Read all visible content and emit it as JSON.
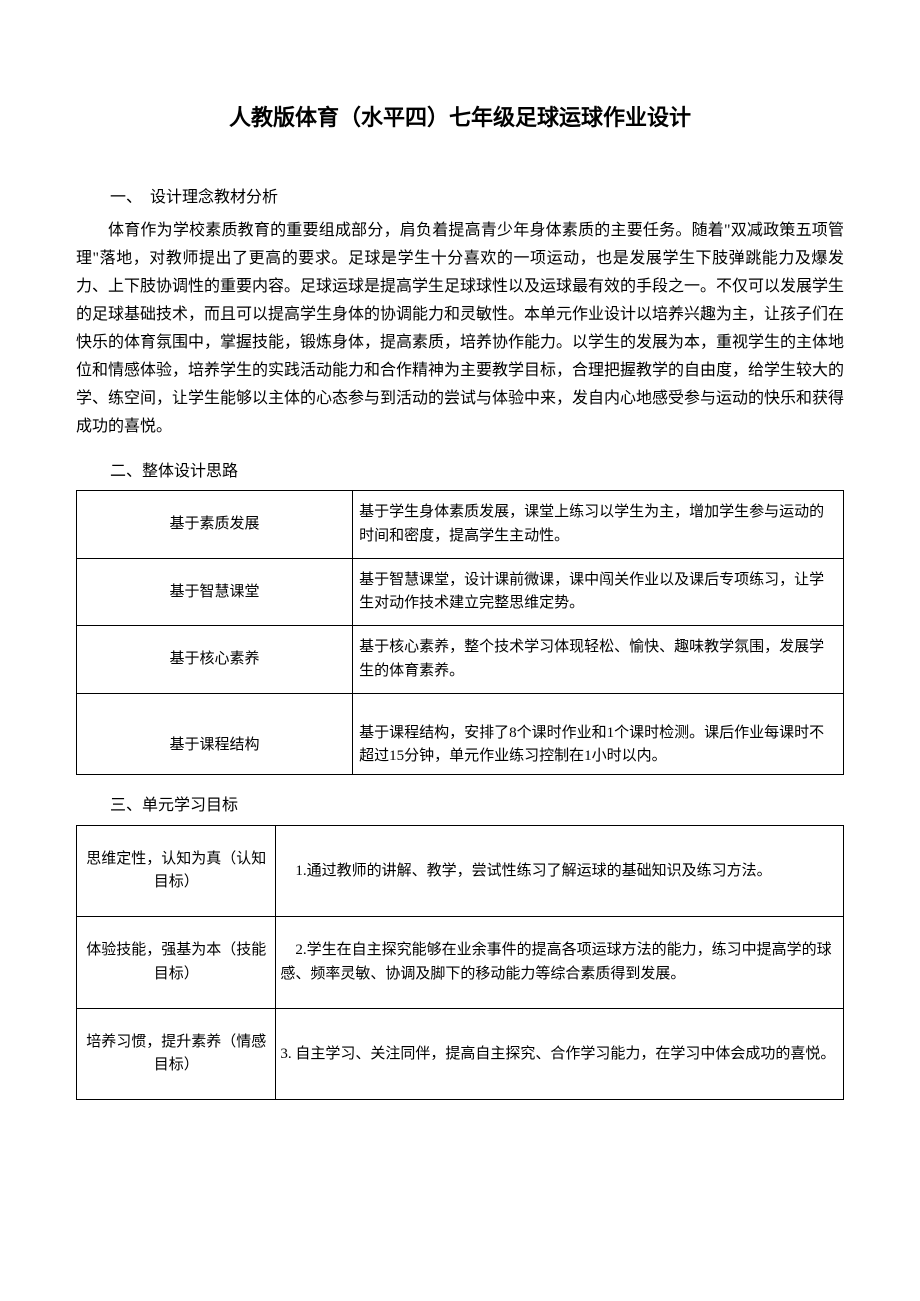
{
  "title": "人教版体育（水平四）七年级足球运球作业设计",
  "section1": {
    "heading": "一、　设计理念教材分析",
    "body": "体育作为学校素质教育的重要组成部分，肩负着提高青少年身体素质的主要任务。随着\"双减政策五项管理\"落地，对教师提出了更高的要求。足球是学生十分喜欢的一项运动，也是发展学生下肢弹跳能力及爆发力、上下肢协调性的重要内容。足球运球是提高学生足球球性以及运球最有效的手段之一。不仅可以发展学生的足球基础技术，而且可以提高学生身体的协调能力和灵敏性。本单元作业设计以培养兴趣为主，让孩子们在快乐的体育氛围中，掌握技能，锻炼身体，提高素质，培养协作能力。以学生的发展为本，重视学生的主体地位和情感体验，培养学生的实践活动能力和合作精神为主要教学目标，合理把握教学的自由度，给学生较大的学、练空间，让学生能够以主体的心态参与到活动的尝试与体验中来，发自内心地感受参与运动的快乐和获得成功的喜悦。"
  },
  "section2": {
    "heading": "二、整体设计思路",
    "rows": [
      {
        "k": "基于素质发展",
        "v": "基于学生身体素质发展，课堂上练习以学生为主，增加学生参与运动的时间和密度，提高学生主动性。"
      },
      {
        "k": "基于智慧课堂",
        "v": "基于智慧课堂，设计课前微课，课中闯关作业以及课后专项练习，让学生对动作技术建立完整思维定势。"
      },
      {
        "k": "基于核心素养",
        "v": "基于核心素养，整个技术学习体现轻松、愉快、趣味教学氛围，发展学生的体育素养。"
      },
      {
        "k": "基于课程结构",
        "v": "基于课程结构，安排了8个课时作业和1个课时检测。课后作业每课时不超过15分钟，单元作业练习控制在1小时以内。"
      }
    ]
  },
  "section3": {
    "heading": "三、单元学习目标",
    "rows": [
      {
        "k": "思维定性，认知为真（认知目标）",
        "v": "1.通过教师的讲解、教学，尝试性练习了解运球的基础知识及练习方法。"
      },
      {
        "k": "体验技能，强基为本（技能目标）",
        "v": "2.学生在自主探究能够在业余事件的提高各项运球方法的能力，练习中提高学的球感、频率灵敏、协调及脚下的移动能力等综合素质得到发展。"
      },
      {
        "k": "培养习惯，提升素养（情感目标）",
        "v": "3. 自主学习、关注同伴，提高自主探究、合作学习能力，在学习中体会成功的喜悦。"
      }
    ]
  }
}
